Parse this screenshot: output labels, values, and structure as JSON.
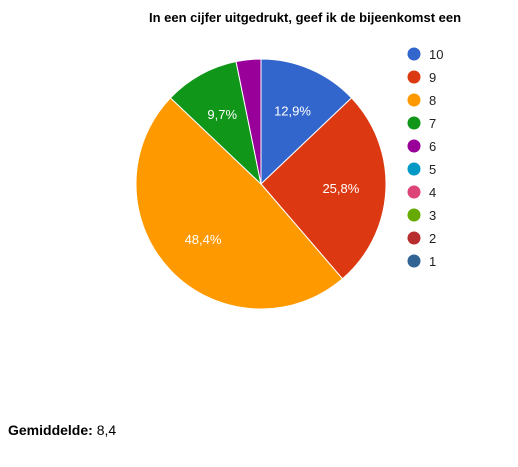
{
  "chart_data": {
    "type": "pie",
    "title": "In een cijfer uitgedrukt, geef ik de bijeenkomst een",
    "slices": [
      {
        "label": "10",
        "value": 12.9,
        "display": "12,9%",
        "color": "#3366cc"
      },
      {
        "label": "9",
        "value": 25.8,
        "display": "25,8%",
        "color": "#dc3912"
      },
      {
        "label": "8",
        "value": 48.4,
        "display": "48,4%",
        "color": "#ff9900"
      },
      {
        "label": "7",
        "value": 9.7,
        "display": "9,7%",
        "color": "#109618"
      },
      {
        "label": "6",
        "value": 3.2,
        "display": "",
        "color": "#990099"
      }
    ],
    "legend": [
      {
        "label": "10",
        "color": "#3366cc"
      },
      {
        "label": "9",
        "color": "#dc3912"
      },
      {
        "label": "8",
        "color": "#ff9900"
      },
      {
        "label": "7",
        "color": "#109618"
      },
      {
        "label": "6",
        "color": "#990099"
      },
      {
        "label": "5",
        "color": "#0099c6"
      },
      {
        "label": "4",
        "color": "#dd4477"
      },
      {
        "label": "3",
        "color": "#66aa00"
      },
      {
        "label": "2",
        "color": "#b82e2e"
      },
      {
        "label": "1",
        "color": "#316395"
      }
    ],
    "legend_position": "right"
  },
  "footer": {
    "label": "Gemiddelde:",
    "value": "8,4"
  }
}
